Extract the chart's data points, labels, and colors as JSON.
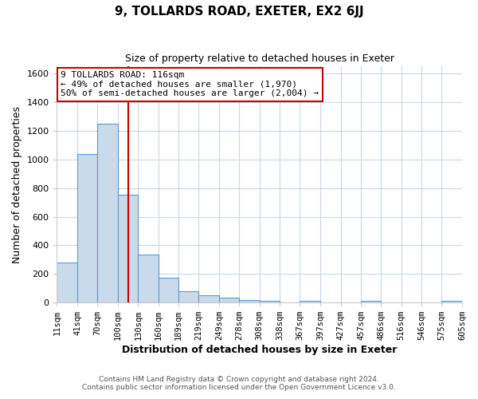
{
  "title": "9, TOLLARDS ROAD, EXETER, EX2 6JJ",
  "subtitle": "Size of property relative to detached houses in Exeter",
  "xlabel": "Distribution of detached houses by size in Exeter",
  "ylabel": "Number of detached properties",
  "footnote1": "Contains HM Land Registry data © Crown copyright and database right 2024.",
  "footnote2": "Contains public sector information licensed under the Open Government Licence v3.0.",
  "bin_labels": [
    "11sqm",
    "41sqm",
    "70sqm",
    "100sqm",
    "130sqm",
    "160sqm",
    "189sqm",
    "219sqm",
    "249sqm",
    "278sqm",
    "308sqm",
    "338sqm",
    "367sqm",
    "397sqm",
    "427sqm",
    "457sqm",
    "486sqm",
    "516sqm",
    "546sqm",
    "575sqm",
    "605sqm"
  ],
  "bin_edges": [
    11,
    41,
    70,
    100,
    130,
    160,
    189,
    219,
    249,
    278,
    308,
    338,
    367,
    397,
    427,
    457,
    486,
    516,
    546,
    575,
    605
  ],
  "bar_heights": [
    280,
    1035,
    1250,
    755,
    335,
    175,
    80,
    50,
    35,
    20,
    15,
    0,
    15,
    0,
    0,
    10,
    0,
    0,
    0,
    10
  ],
  "bar_color": "#c9daea",
  "bar_edge_color": "#5b9bd5",
  "vline_x": 116,
  "vline_color": "#cc0000",
  "ylim": [
    0,
    1650
  ],
  "yticks": [
    0,
    200,
    400,
    600,
    800,
    1000,
    1200,
    1400,
    1600
  ],
  "annotation_title": "9 TOLLARDS ROAD: 116sqm",
  "annotation_line1": "← 49% of detached houses are smaller (1,970)",
  "annotation_line2": "50% of semi-detached houses are larger (2,004) →",
  "annotation_box_color": "#ffffff",
  "annotation_box_edge": "#cc0000",
  "grid_color": "#c8d8e8",
  "bg_color": "#ffffff"
}
